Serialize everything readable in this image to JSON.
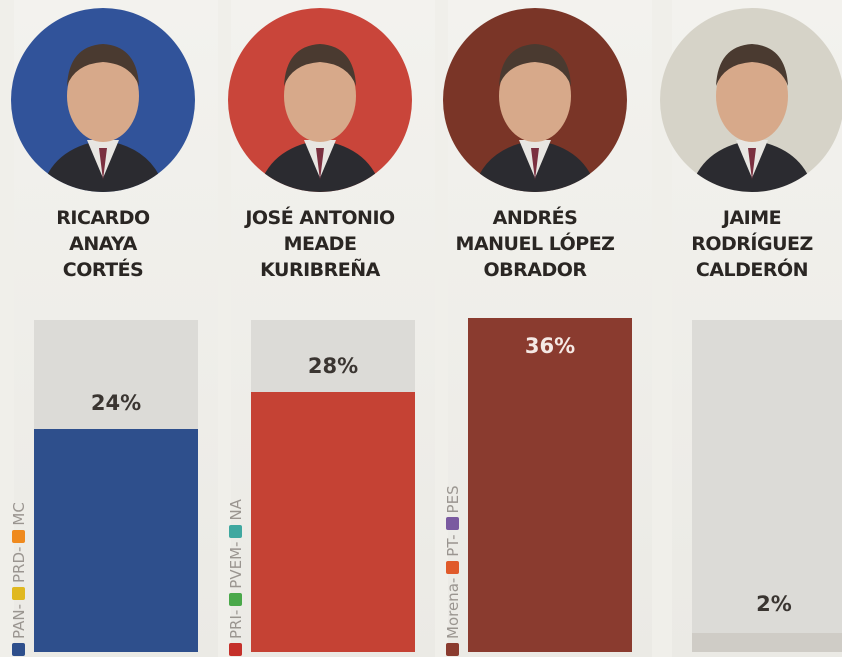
{
  "chart_data": {
    "type": "bar",
    "categories": [
      "RICARDO ANAYA CORTÉS",
      "JOSÉ ANTONIO MEADE KURIBREÑA",
      "ANDRÉS MANUEL LÓPEZ OBRADOR",
      "JAIME RODRÍGUEZ CALDERÓN"
    ],
    "values": [
      24,
      28,
      36,
      2
    ],
    "unit": "%",
    "ylim": [
      0,
      36
    ],
    "grid": false,
    "legend": "none"
  },
  "candidates": [
    {
      "name": "RICARDO\nANAYA\nCORTÉS",
      "value_label": "24%",
      "value": 24,
      "color": "#2e4f8c",
      "photo_bg": "#31539a",
      "parties": [
        {
          "name": "PAN",
          "color": "#2e4f8c"
        },
        {
          "name": "PRD",
          "color": "#e0b820"
        },
        {
          "name": "MC",
          "color": "#ef8a1e"
        }
      ]
    },
    {
      "name": "JOSÉ ANTONIO\nMEADE\nKURIBREÑA",
      "value_label": "28%",
      "value": 28,
      "color": "#c54234",
      "photo_bg": "#c9453a",
      "parties": [
        {
          "name": "PRI",
          "color": "#c5302a"
        },
        {
          "name": "PVEM",
          "color": "#4aa84a"
        },
        {
          "name": "NA",
          "color": "#3fa8a0"
        }
      ]
    },
    {
      "name": "ANDRÉS\nMANUEL LÓPEZ\nOBRADOR",
      "value_label": "36%",
      "value": 36,
      "color": "#8a3b2f",
      "photo_bg": "#7a3527",
      "parties": [
        {
          "name": "Morena",
          "color": "#8a3b2f"
        },
        {
          "name": "PT",
          "color": "#e05a2a"
        },
        {
          "name": "PES",
          "color": "#7a5aa0"
        }
      ]
    },
    {
      "name": "JAIME\nRODRÍGUEZ\nCALDERÓN",
      "value_label": "2%",
      "value": 2,
      "color": "#cfccc6",
      "photo_bg": "#d6d3c8",
      "parties": []
    }
  ]
}
